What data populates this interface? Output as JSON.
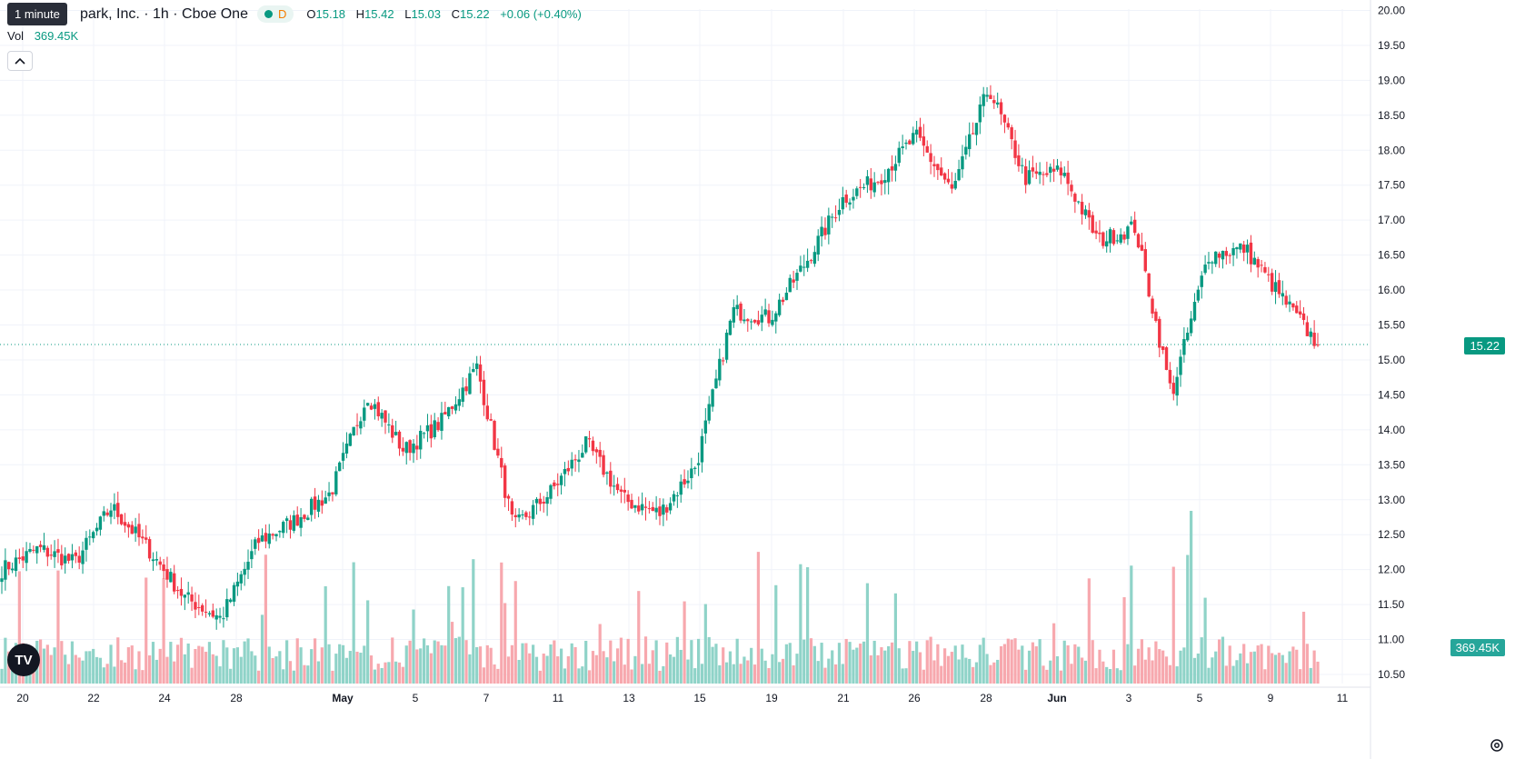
{
  "header": {
    "tooltip": "1 minute",
    "symbol": "park, Inc. · 1h · Cboe One",
    "d_label": "D",
    "o_key": "O",
    "o_val": "15.18",
    "h_key": "H",
    "h_val": "15.42",
    "l_key": "L",
    "l_val": "15.03",
    "c_key": "C",
    "c_val": "15.22",
    "change": "+0.06 (+0.40%)"
  },
  "volume": {
    "label": "Vol",
    "value": "369.45K"
  },
  "tags": {
    "last_price": "15.22",
    "last_volume": "369.45K"
  },
  "colors": {
    "up": "#089981",
    "down": "#f23645",
    "up_vol": "#8fd3c8",
    "down_vol": "#f7a8ae",
    "grid": "#f0f3fa",
    "tag_price": "#089981",
    "tag_vol": "#26a69a"
  },
  "icons": {
    "collapse": "chevron-up-icon",
    "logo": "tradingview-logo-icon",
    "settings": "gear-icon"
  },
  "chart_data": {
    "type": "candlestick",
    "interval": "1h",
    "ylim": [
      10.3,
      20.1
    ],
    "y_ticks": [
      "20.00",
      "19.50",
      "19.00",
      "18.50",
      "18.00",
      "17.50",
      "17.00",
      "16.50",
      "16.00",
      "15.50",
      "15.00",
      "14.50",
      "14.00",
      "13.50",
      "13.00",
      "12.50",
      "12.00",
      "11.50",
      "11.00",
      "10.50"
    ],
    "x_ticks": [
      "20",
      "22",
      "24",
      "28",
      "May",
      "5",
      "7",
      "11",
      "13",
      "15",
      "19",
      "21",
      "26",
      "28",
      "Jun",
      "3",
      "5",
      "9",
      "11"
    ],
    "last_price": 15.22,
    "close_path": [
      {
        "date": "Apr 20",
        "close": 12.0
      },
      {
        "date": "Apr 22",
        "close": 12.3
      },
      {
        "date": "Apr 23",
        "close": 12.1
      },
      {
        "date": "Apr 24",
        "close": 12.9
      },
      {
        "date": "Apr 25",
        "close": 12.3
      },
      {
        "date": "Apr 28",
        "close": 11.6
      },
      {
        "date": "Apr 30",
        "close": 11.3
      },
      {
        "date": "May 1",
        "close": 12.4
      },
      {
        "date": "May 2",
        "close": 12.7
      },
      {
        "date": "May 5",
        "close": 13.1
      },
      {
        "date": "May 6",
        "close": 14.5
      },
      {
        "date": "May 7",
        "close": 13.7
      },
      {
        "date": "May 9",
        "close": 14.1
      },
      {
        "date": "May 11",
        "close": 14.9
      },
      {
        "date": "May 12",
        "close": 12.6
      },
      {
        "date": "May 13",
        "close": 13.1
      },
      {
        "date": "May 14",
        "close": 13.8
      },
      {
        "date": "May 15",
        "close": 13.0
      },
      {
        "date": "May 16",
        "close": 12.8
      },
      {
        "date": "May 19",
        "close": 13.5
      },
      {
        "date": "May 20",
        "close": 15.7
      },
      {
        "date": "May 21",
        "close": 15.6
      },
      {
        "date": "May 23",
        "close": 16.4
      },
      {
        "date": "May 26",
        "close": 17.3
      },
      {
        "date": "May 27",
        "close": 17.6
      },
      {
        "date": "May 28",
        "close": 18.2
      },
      {
        "date": "May 30",
        "close": 17.4
      },
      {
        "date": "Jun 2",
        "close": 18.9
      },
      {
        "date": "Jun 3",
        "close": 17.6
      },
      {
        "date": "Jun 4",
        "close": 17.7
      },
      {
        "date": "Jun 4b",
        "close": 16.7
      },
      {
        "date": "Jun 5",
        "close": 16.9
      },
      {
        "date": "Jun 6",
        "close": 14.5
      },
      {
        "date": "Jun 7",
        "close": 16.5
      },
      {
        "date": "Jun 9",
        "close": 16.6
      },
      {
        "date": "Jun 10",
        "close": 15.9
      },
      {
        "date": "Jun 11",
        "close": 15.22
      }
    ],
    "volume_bars": "hourly volume histogram, peak ~0.55 of panel height near Jun 6"
  }
}
